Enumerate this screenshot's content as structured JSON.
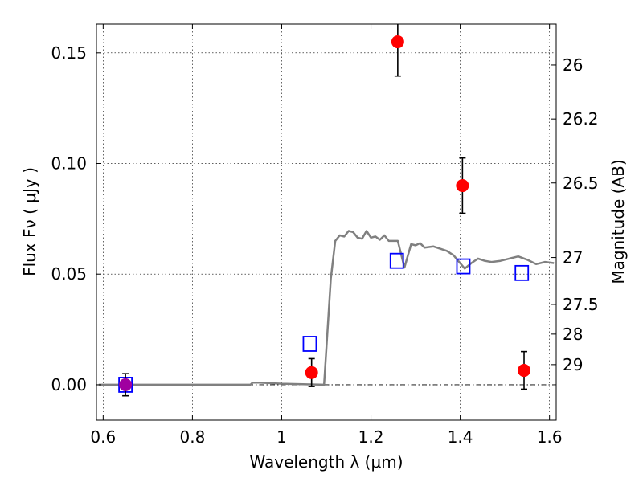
{
  "chart_data": {
    "type": "scatter",
    "xlabel": "Wavelength  λ (μm)",
    "ylabel": "Flux  Fν  ( μJy )",
    "y2label": "Magnitude (AB)",
    "xlim": [
      0.585,
      1.615
    ],
    "ylim": [
      -0.016,
      0.163
    ],
    "xticks": [
      {
        "value": 0.6,
        "label": "0.6"
      },
      {
        "value": 0.8,
        "label": "0.8"
      },
      {
        "value": 1.0,
        "label": "1"
      },
      {
        "value": 1.2,
        "label": "1.2"
      },
      {
        "value": 1.4,
        "label": "1.4"
      },
      {
        "value": 1.6,
        "label": "1.6"
      }
    ],
    "yticks": [
      {
        "value": 0.0,
        "label": "0.00"
      },
      {
        "value": 0.05,
        "label": "0.05"
      },
      {
        "value": 0.1,
        "label": "0.10"
      },
      {
        "value": 0.15,
        "label": "0.15"
      }
    ],
    "y2ticks": [
      {
        "flux": 0.1445,
        "label": "26"
      },
      {
        "flux": 0.1201,
        "label": "26.2"
      },
      {
        "flux": 0.0912,
        "label": "26.5"
      },
      {
        "flux": 0.0575,
        "label": "27"
      },
      {
        "flux": 0.0363,
        "label": "27.5"
      },
      {
        "flux": 0.0229,
        "label": "28"
      },
      {
        "flux": 0.0091,
        "label": "29"
      }
    ],
    "grid": true,
    "colors": {
      "observed": "#ff0000",
      "model": "#0000ff",
      "sed": "#808080",
      "special": "#a000a0"
    },
    "observed": [
      {
        "x": 0.65,
        "y": 0.0,
        "err": 0.005
      },
      {
        "x": 1.067,
        "y": 0.0055,
        "err": 0.0063
      },
      {
        "x": 1.26,
        "y": 0.155,
        "err": 0.0155
      },
      {
        "x": 1.405,
        "y": 0.09,
        "err": 0.0125
      },
      {
        "x": 1.543,
        "y": 0.0065,
        "err": 0.0085
      }
    ],
    "model_points": [
      {
        "x": 0.65,
        "y": 0.0
      },
      {
        "x": 1.063,
        "y": 0.0185
      },
      {
        "x": 1.258,
        "y": 0.056
      },
      {
        "x": 1.407,
        "y": 0.0535
      },
      {
        "x": 1.538,
        "y": 0.0505
      }
    ],
    "sed": [
      [
        0.59,
        0.0
      ],
      [
        0.93,
        0.0
      ],
      [
        0.935,
        0.001
      ],
      [
        0.95,
        0.001
      ],
      [
        1.0,
        0.0005
      ],
      [
        1.095,
        0.0
      ],
      [
        1.11,
        0.048
      ],
      [
        1.12,
        0.065
      ],
      [
        1.13,
        0.0675
      ],
      [
        1.14,
        0.067
      ],
      [
        1.15,
        0.0695
      ],
      [
        1.16,
        0.069
      ],
      [
        1.17,
        0.0665
      ],
      [
        1.18,
        0.066
      ],
      [
        1.19,
        0.0695
      ],
      [
        1.2,
        0.0665
      ],
      [
        1.21,
        0.067
      ],
      [
        1.22,
        0.0655
      ],
      [
        1.23,
        0.0675
      ],
      [
        1.24,
        0.065
      ],
      [
        1.26,
        0.065
      ],
      [
        1.275,
        0.053
      ],
      [
        1.29,
        0.0635
      ],
      [
        1.3,
        0.063
      ],
      [
        1.31,
        0.064
      ],
      [
        1.32,
        0.062
      ],
      [
        1.34,
        0.0625
      ],
      [
        1.355,
        0.0615
      ],
      [
        1.37,
        0.0605
      ],
      [
        1.385,
        0.0585
      ],
      [
        1.41,
        0.0525
      ],
      [
        1.425,
        0.055
      ],
      [
        1.44,
        0.057
      ],
      [
        1.455,
        0.056
      ],
      [
        1.47,
        0.0555
      ],
      [
        1.49,
        0.056
      ],
      [
        1.51,
        0.057
      ],
      [
        1.53,
        0.058
      ],
      [
        1.55,
        0.0565
      ],
      [
        1.57,
        0.0545
      ],
      [
        1.59,
        0.0555
      ],
      [
        1.61,
        0.055
      ]
    ]
  }
}
